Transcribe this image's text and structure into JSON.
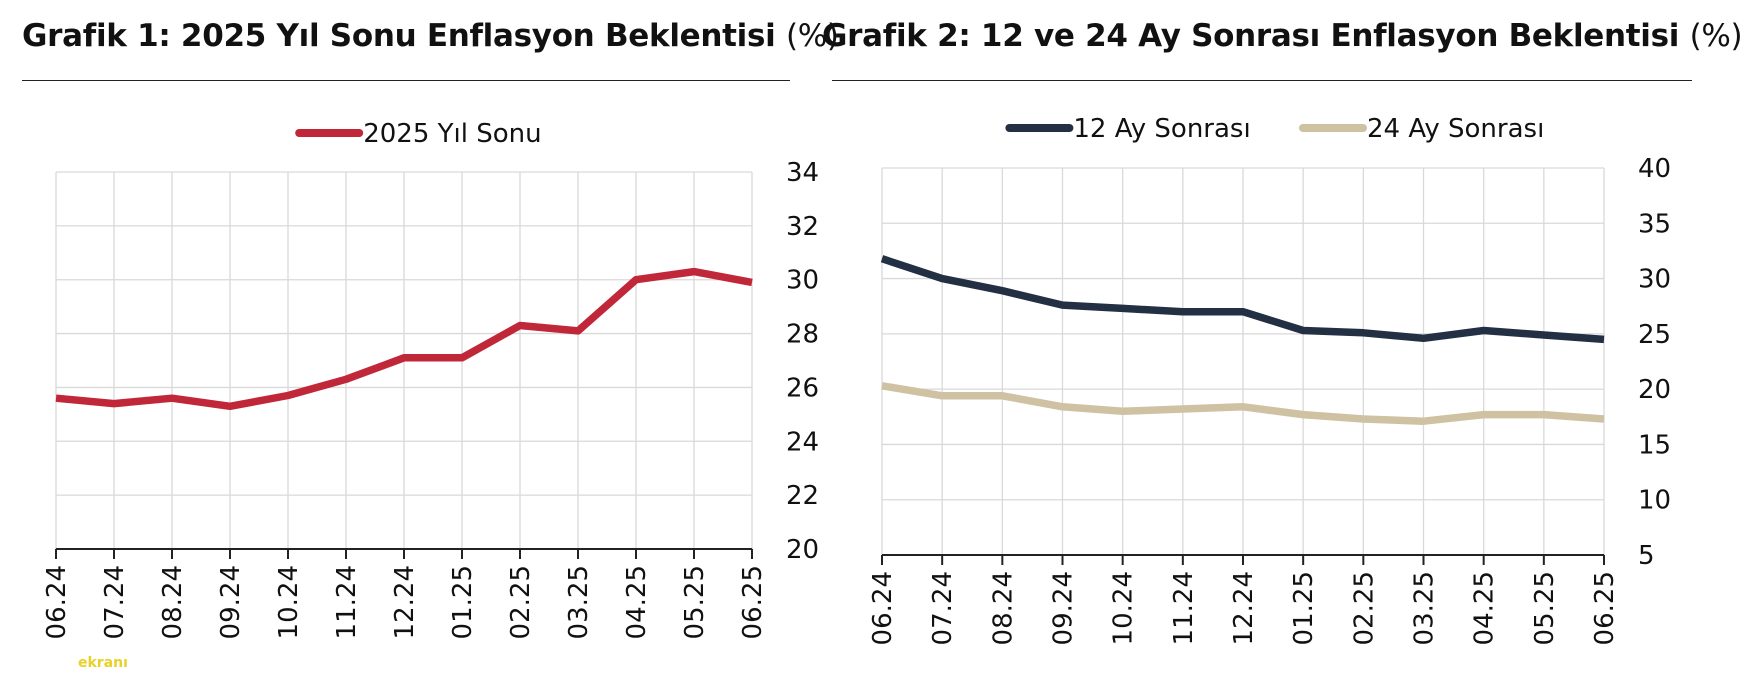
{
  "chart_data": [
    {
      "type": "line",
      "title": "Grafik 1: 2025 Yıl Sonu Enflasyon Beklentisi",
      "title_unit": "(%)",
      "categories": [
        "06.24",
        "07.24",
        "08.24",
        "09.24",
        "10.24",
        "11.24",
        "12.24",
        "01.25",
        "02.25",
        "03.25",
        "04.25",
        "05.25",
        "06.25"
      ],
      "series": [
        {
          "name": "2025 Yıl Sonu",
          "color": "#c0283a",
          "values": [
            25.6,
            25.4,
            25.6,
            25.3,
            25.7,
            26.3,
            27.1,
            27.1,
            28.3,
            28.1,
            30.0,
            30.3,
            29.9
          ]
        }
      ],
      "ylim": [
        20,
        34
      ],
      "yticks": [
        20,
        22,
        24,
        26,
        28,
        30,
        32,
        34
      ],
      "y_axis_side": "right",
      "legend": "top-center",
      "grid": true
    },
    {
      "type": "line",
      "title": "Grafik 2: 12 ve 24 Ay Sonrası Enflasyon Beklentisi",
      "title_unit": "(%)",
      "categories": [
        "06.24",
        "07.24",
        "08.24",
        "09.24",
        "10.24",
        "11.24",
        "12.24",
        "01.25",
        "02.25",
        "03.25",
        "04.25",
        "05.25",
        "06.25"
      ],
      "series": [
        {
          "name": "12 Ay Sonrası",
          "color": "#232f42",
          "values": [
            31.8,
            30.0,
            28.9,
            27.6,
            27.3,
            27.0,
            27.0,
            25.3,
            25.1,
            24.6,
            25.3,
            24.9,
            24.5
          ]
        },
        {
          "name": "24 Ay Sonrası",
          "color": "#cfc2a2",
          "values": [
            20.3,
            19.4,
            19.4,
            18.4,
            18.0,
            18.2,
            18.4,
            17.7,
            17.3,
            17.1,
            17.7,
            17.7,
            17.3
          ]
        }
      ],
      "ylim": [
        5,
        40
      ],
      "yticks": [
        5,
        10,
        15,
        20,
        25,
        30,
        35,
        40
      ],
      "y_axis_side": "right",
      "legend": "top-center",
      "grid": true
    }
  ],
  "logo_text": "ekranı"
}
